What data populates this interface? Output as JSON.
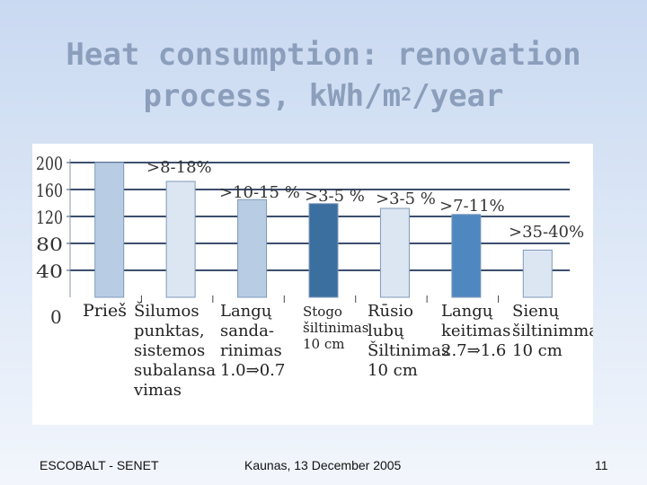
{
  "title_line1": "Heat consumption: renovation",
  "title_line2_prefix": "process, kWh/m",
  "title_superscript": "2",
  "title_line2_suffix": "/year",
  "footer": {
    "left": "ESCOBALT - SENET",
    "center": "Kaunas, 13 December 2005",
    "page": "11"
  },
  "chart_data": {
    "type": "bar",
    "title": "Heat consumption: renovation process, kWh/m2/year",
    "xlabel": "",
    "ylabel": "",
    "ylim": [
      0,
      200
    ],
    "yticks": [
      200,
      160,
      120,
      80,
      40,
      0
    ],
    "grid": true,
    "categories": [
      [
        "Prieš"
      ],
      [
        "Šilumos",
        "punktas,",
        "sistemos",
        "subalansa",
        "vimas"
      ],
      [
        "Langų",
        "sanda-",
        "rinimas",
        "1.0⇒0.7"
      ],
      [
        "Stogo",
        "šiltinimas",
        "10 cm"
      ],
      [
        "Rūsio",
        "lubų",
        "Šiltinimas",
        "10 cm"
      ],
      [
        "Langų",
        "keitimas",
        "2.7⇒1.6"
      ],
      [
        "Sienų",
        "šiltinimmas",
        "10 cm"
      ]
    ],
    "values": [
      200,
      172,
      145,
      139,
      132,
      123,
      70
    ],
    "annotations": [
      "",
      ">8-18%",
      ">10-15 %",
      ">3-5 %",
      ">3-5 %",
      ">7-11%",
      ">35-40%"
    ],
    "bar_colors": [
      "#b8cce4",
      "#dce6f2",
      "#b8cce4",
      "#3b6fa0",
      "#dce6f2",
      "#4f88c0",
      "#dce6f2"
    ]
  }
}
